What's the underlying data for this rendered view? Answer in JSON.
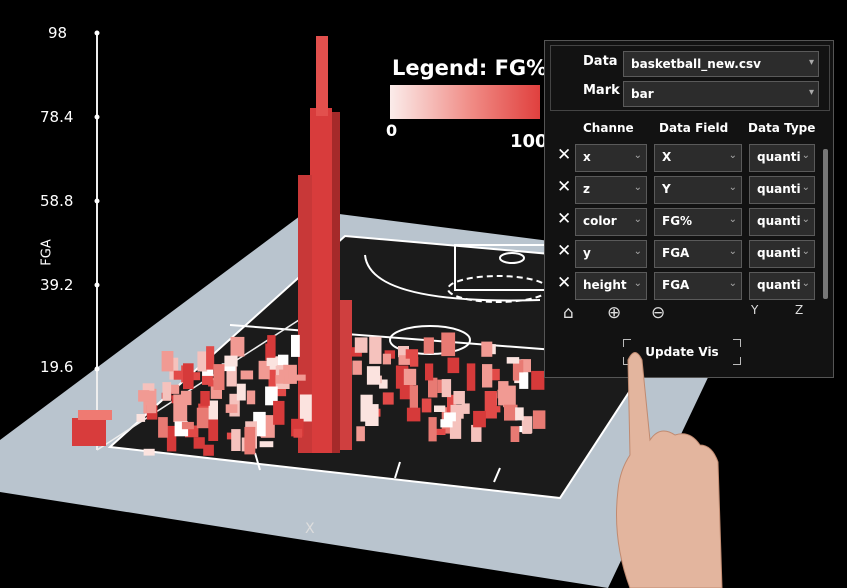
{
  "legend": {
    "title": "Legend: FG%",
    "min": "0",
    "max": "100"
  },
  "y_axis": {
    "label": "FGA",
    "ticks": [
      "98",
      "78.4",
      "58.8",
      "39.2",
      "19.6"
    ]
  },
  "x_axis": {
    "label": "X"
  },
  "panel": {
    "data_label": "Data",
    "data_value": "basketball_new.csv",
    "mark_label": "Mark",
    "mark_value": "bar",
    "headers": {
      "channel": "Channe",
      "field": "Data Field",
      "type": "Data Type"
    },
    "rows": [
      {
        "channel": "x",
        "field": "X",
        "type": "quanti"
      },
      {
        "channel": "z",
        "field": "Y",
        "type": "quanti"
      },
      {
        "channel": "color",
        "field": "FG%",
        "type": "quanti"
      },
      {
        "channel": "y",
        "field": "FGA",
        "type": "quanti"
      },
      {
        "channel": "height",
        "field": "FGA",
        "type": "quanti"
      }
    ],
    "toolbar": {
      "home_icon": "⌂",
      "zoom_in_icon": "⊕",
      "zoom_out_icon": "⊖",
      "rot_y_icon": "Y",
      "rot_z_icon": "Z"
    },
    "update_label": "Update Vis"
  },
  "colors": {
    "bar": "#d83c3c",
    "court": "#1b1b1b",
    "floor": "#b9c4ce"
  }
}
